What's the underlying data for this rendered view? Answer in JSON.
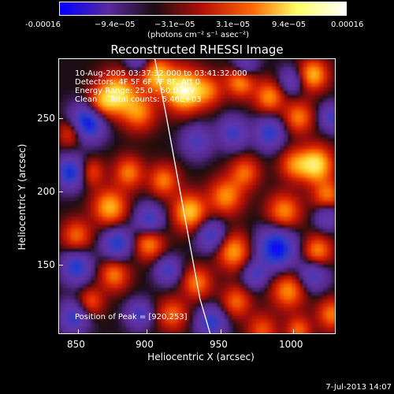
{
  "colorbar": {
    "tick_labels": [
      "-0.00016",
      "−9.4e−05",
      "−3.1e−05",
      "3.1e−05",
      "9.4e−05",
      "0.00016"
    ],
    "unit_label": "(photons cm⁻² s⁻¹ asec⁻²)",
    "colors": [
      "#0000ff",
      "#5a2aa0",
      "#1a0c12",
      "#b51008",
      "#ff6600",
      "#ffff66",
      "#ffffff"
    ]
  },
  "plot": {
    "title": "Reconstructed RHESSI Image",
    "xlabel": "Heliocentric X (arcsec)",
    "ylabel": "Heliocentric Y (arcsec)",
    "x_ticks": [
      "850",
      "900",
      "950",
      "1000"
    ],
    "y_ticks": [
      "250",
      "200",
      "150"
    ],
    "x_range": [
      840,
      1030
    ],
    "y_range": [
      98,
      272
    ]
  },
  "overlay": {
    "line1": "10-Aug-2005 03:37:32.000 to 03:41:32.000",
    "line2": "Detectors: 4F 5F 6F 7F 8F, Att 0",
    "line3": "Energy Range: 25.0 - 50.0 keV",
    "line4": "Clean     Total counts: 5.46E+03",
    "peak": "Position of Peak = [920,253]"
  },
  "footer": {
    "date": "7-Jul-2013 14:07"
  },
  "limb": {
    "x": [
      906,
      913,
      921,
      929,
      937,
      944
    ],
    "y": [
      272,
      240,
      200,
      160,
      120,
      98
    ]
  },
  "blobs": [
    {
      "x": 926,
      "y": 252,
      "amp": 1.0,
      "s": 9
    },
    {
      "x": 907,
      "y": 262,
      "amp": 0.7,
      "s": 8
    },
    {
      "x": 880,
      "y": 250,
      "amp": 0.8,
      "s": 9
    },
    {
      "x": 868,
      "y": 243,
      "amp": 0.5,
      "s": 7
    },
    {
      "x": 943,
      "y": 252,
      "amp": 0.45,
      "s": 7
    },
    {
      "x": 895,
      "y": 238,
      "amp": 0.55,
      "s": 8
    },
    {
      "x": 965,
      "y": 258,
      "amp": 0.65,
      "s": 7
    },
    {
      "x": 985,
      "y": 248,
      "amp": 0.6,
      "s": 7
    },
    {
      "x": 1015,
      "y": 262,
      "amp": 0.7,
      "s": 7
    },
    {
      "x": 1005,
      "y": 235,
      "amp": 0.55,
      "s": 7
    },
    {
      "x": 1017,
      "y": 205,
      "amp": 0.85,
      "s": 8
    },
    {
      "x": 1002,
      "y": 205,
      "amp": 0.5,
      "s": 7
    },
    {
      "x": 1025,
      "y": 185,
      "amp": 0.55,
      "s": 7
    },
    {
      "x": 995,
      "y": 175,
      "amp": 0.6,
      "s": 8
    },
    {
      "x": 968,
      "y": 200,
      "amp": 0.5,
      "s": 7
    },
    {
      "x": 955,
      "y": 185,
      "amp": 0.6,
      "s": 8
    },
    {
      "x": 930,
      "y": 175,
      "amp": 0.75,
      "s": 8
    },
    {
      "x": 912,
      "y": 195,
      "amp": 0.55,
      "s": 7
    },
    {
      "x": 888,
      "y": 200,
      "amp": 0.55,
      "s": 7
    },
    {
      "x": 875,
      "y": 178,
      "amp": 0.7,
      "s": 8
    },
    {
      "x": 862,
      "y": 200,
      "amp": 0.45,
      "s": 6
    },
    {
      "x": 848,
      "y": 225,
      "amp": 0.45,
      "s": 6
    },
    {
      "x": 852,
      "y": 160,
      "amp": 0.5,
      "s": 7
    },
    {
      "x": 902,
      "y": 155,
      "amp": 0.6,
      "s": 7
    },
    {
      "x": 960,
      "y": 150,
      "amp": 0.65,
      "s": 8
    },
    {
      "x": 1018,
      "y": 150,
      "amp": 0.6,
      "s": 7
    },
    {
      "x": 878,
      "y": 135,
      "amp": 0.55,
      "s": 7
    },
    {
      "x": 935,
      "y": 130,
      "amp": 0.55,
      "s": 7
    },
    {
      "x": 998,
      "y": 125,
      "amp": 0.6,
      "s": 8
    },
    {
      "x": 962,
      "y": 118,
      "amp": 0.5,
      "s": 7
    },
    {
      "x": 862,
      "y": 118,
      "amp": 0.45,
      "s": 6
    },
    {
      "x": 918,
      "y": 110,
      "amp": 0.5,
      "s": 7
    },
    {
      "x": 1028,
      "y": 110,
      "amp": 0.55,
      "s": 7
    },
    {
      "x": 980,
      "y": 100,
      "amp": 0.45,
      "s": 7
    },
    {
      "x": 1005,
      "y": 100,
      "amp": 0.5,
      "s": 6
    },
    {
      "x": 860,
      "y": 232,
      "amp": -0.95,
      "s": 8
    },
    {
      "x": 848,
      "y": 200,
      "amp": -0.8,
      "s": 7
    },
    {
      "x": 880,
      "y": 155,
      "amp": -0.7,
      "s": 7
    },
    {
      "x": 902,
      "y": 170,
      "amp": -0.6,
      "s": 7
    },
    {
      "x": 990,
      "y": 152,
      "amp": -0.95,
      "s": 9
    },
    {
      "x": 985,
      "y": 225,
      "amp": -0.65,
      "s": 7
    },
    {
      "x": 1028,
      "y": 235,
      "amp": -0.55,
      "s": 6
    },
    {
      "x": 935,
      "y": 220,
      "amp": -0.5,
      "s": 7
    },
    {
      "x": 960,
      "y": 225,
      "amp": -0.55,
      "s": 7
    },
    {
      "x": 945,
      "y": 160,
      "amp": -0.6,
      "s": 7
    },
    {
      "x": 915,
      "y": 138,
      "amp": -0.55,
      "s": 6
    },
    {
      "x": 852,
      "y": 140,
      "amp": -0.7,
      "s": 7
    },
    {
      "x": 850,
      "y": 108,
      "amp": -0.6,
      "s": 7
    },
    {
      "x": 895,
      "y": 110,
      "amp": -0.55,
      "s": 6
    },
    {
      "x": 945,
      "y": 105,
      "amp": -0.65,
      "s": 7
    },
    {
      "x": 1015,
      "y": 135,
      "amp": -0.55,
      "s": 7
    },
    {
      "x": 1025,
      "y": 172,
      "amp": -0.5,
      "s": 6
    },
    {
      "x": 968,
      "y": 268,
      "amp": -0.5,
      "s": 6
    },
    {
      "x": 1000,
      "y": 258,
      "amp": -0.45,
      "s": 6
    },
    {
      "x": 895,
      "y": 272,
      "amp": -0.5,
      "s": 6
    },
    {
      "x": 975,
      "y": 135,
      "amp": -0.5,
      "s": 6
    }
  ]
}
